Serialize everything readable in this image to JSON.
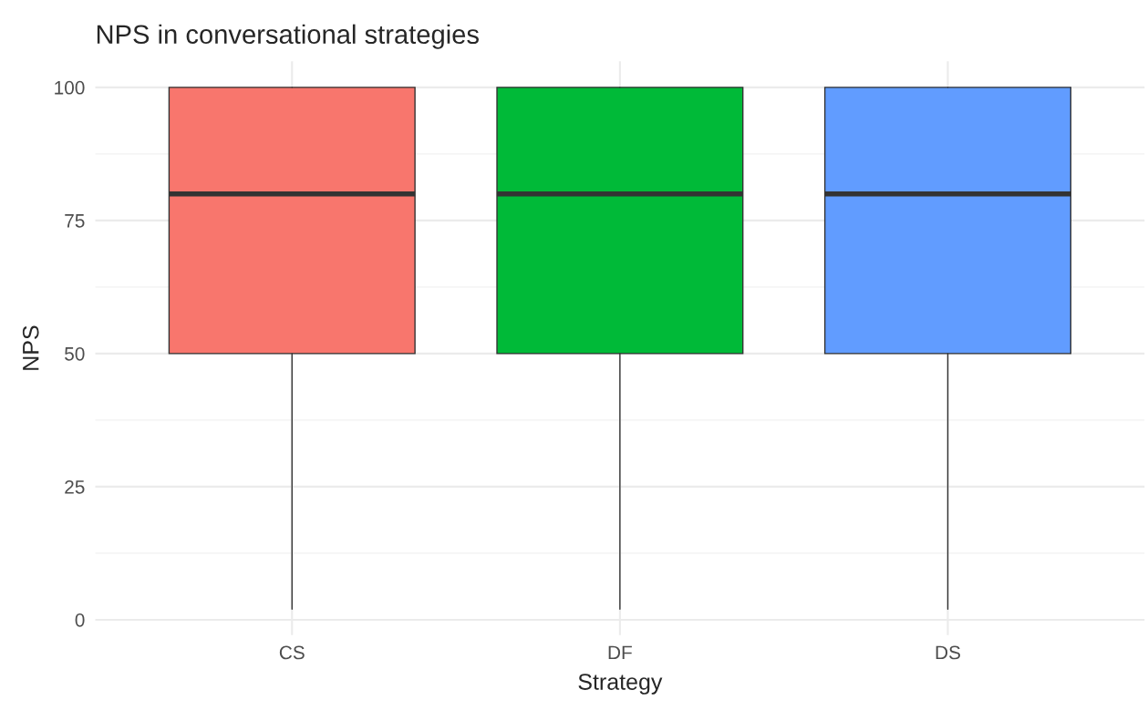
{
  "chart_data": {
    "type": "box",
    "title": "NPS in conversational strategies",
    "xlabel": "Strategy",
    "ylabel": "NPS",
    "categories": [
      "CS",
      "DF",
      "DS"
    ],
    "boxes": [
      {
        "low": 2,
        "q1": 50,
        "median": 80,
        "q3": 100,
        "high": 100
      },
      {
        "low": 2,
        "q1": 50,
        "median": 80,
        "q3": 100,
        "high": 100
      },
      {
        "low": 2,
        "q1": 50,
        "median": 80,
        "q3": 100,
        "high": 100
      }
    ],
    "colors": [
      "#f8766d",
      "#00ba38",
      "#619cff"
    ],
    "ylim": [
      -2.9,
      104.9
    ],
    "yticks": [
      0,
      25,
      50,
      75,
      100
    ],
    "grid": true,
    "legend": false
  }
}
